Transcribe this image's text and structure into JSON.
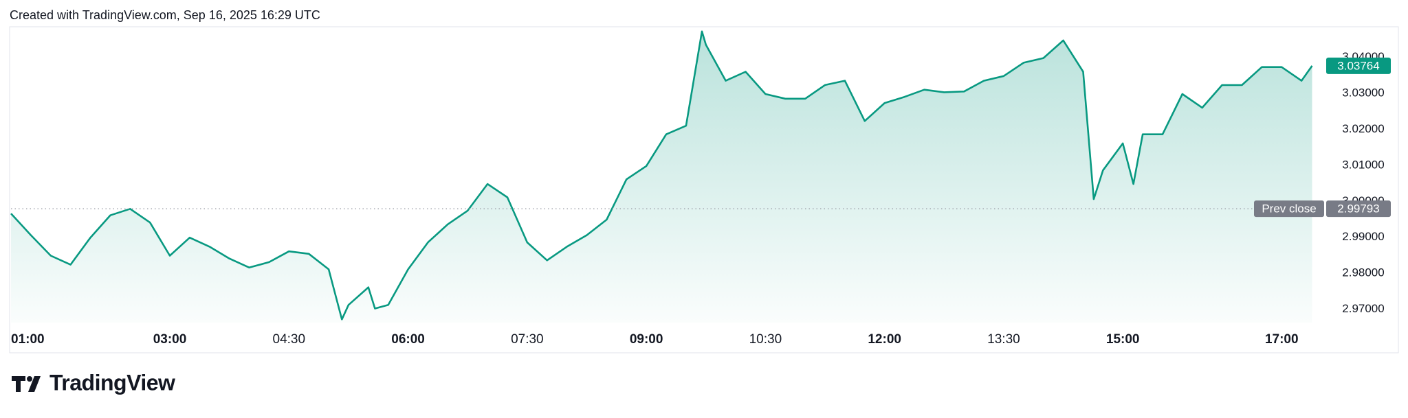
{
  "header": {
    "text": "Created with TradingView.com, Sep 16, 2025 16:29 UTC"
  },
  "footer": {
    "brand": "TradingView"
  },
  "chart_data": {
    "type": "area",
    "color": "#089981",
    "x": [
      "01:00",
      "01:15",
      "01:30",
      "01:45",
      "02:00",
      "02:15",
      "02:30",
      "02:45",
      "03:00",
      "03:15",
      "03:30",
      "03:45",
      "04:00",
      "04:15",
      "04:30",
      "04:45",
      "05:00",
      "05:10",
      "05:15",
      "05:30",
      "05:35",
      "05:45",
      "06:00",
      "06:15",
      "06:30",
      "06:45",
      "07:00",
      "07:15",
      "07:30",
      "07:45",
      "08:00",
      "08:15",
      "08:30",
      "08:45",
      "09:00",
      "09:15",
      "09:30",
      "09:42",
      "09:45",
      "10:00",
      "10:15",
      "10:30",
      "10:45",
      "11:00",
      "11:15",
      "11:30",
      "11:45",
      "12:00",
      "12:15",
      "12:30",
      "12:45",
      "13:00",
      "13:15",
      "13:30",
      "13:45",
      "14:00",
      "14:15",
      "14:30",
      "14:38",
      "14:45",
      "15:00",
      "15:08",
      "15:15",
      "15:30",
      "15:45",
      "16:00",
      "16:15",
      "16:30",
      "16:45",
      "17:00",
      "17:15",
      "17:23"
    ],
    "values": [
      2.9966,
      2.9906,
      2.9849,
      2.9824,
      2.9899,
      2.9961,
      2.9979,
      2.9941,
      2.9849,
      2.9899,
      2.9874,
      2.9841,
      2.9816,
      2.9831,
      2.9861,
      2.9854,
      2.9811,
      2.9672,
      2.9712,
      2.9761,
      2.9702,
      2.9712,
      2.9811,
      2.9886,
      2.9936,
      2.9974,
      3.0048,
      3.0011,
      2.9886,
      2.9836,
      2.9874,
      2.9906,
      2.9949,
      3.0061,
      3.0098,
      3.0186,
      3.021,
      3.0472,
      3.0435,
      3.0335,
      3.036,
      3.0298,
      3.0285,
      3.0285,
      3.0323,
      3.0335,
      3.0223,
      3.0273,
      3.029,
      3.031,
      3.0303,
      3.0305,
      3.0335,
      3.0348,
      3.0385,
      3.0398,
      3.0447,
      3.036,
      3.0006,
      3.0086,
      3.0161,
      3.0048,
      3.0186,
      3.0186,
      3.0298,
      3.026,
      3.0323,
      3.0323,
      3.0373,
      3.0373,
      3.0335,
      3.03764
    ],
    "xlim": [
      "01:00",
      "17:30"
    ],
    "xticks": [
      "01:00",
      "03:00",
      "04:30",
      "06:00",
      "07:30",
      "09:00",
      "10:30",
      "12:00",
      "13:30",
      "15:00",
      "17:00"
    ],
    "xticks_bold": [
      true,
      true,
      false,
      true,
      false,
      true,
      false,
      true,
      false,
      true,
      true
    ],
    "ylim": [
      2.9663,
      3.0483
    ],
    "yticks": [
      {
        "value": 2.97,
        "label": "2.97000"
      },
      {
        "value": 2.98,
        "label": "2.98000"
      },
      {
        "value": 2.99,
        "label": "2.99000"
      },
      {
        "value": 3.0,
        "label": "3.00000"
      },
      {
        "value": 3.01,
        "label": "3.01000"
      },
      {
        "value": 3.02,
        "label": "3.02000"
      },
      {
        "value": 3.03,
        "label": "3.03000"
      },
      {
        "value": 3.04,
        "label": "3.04000"
      }
    ],
    "grid": false,
    "prev_close": {
      "label": "Prev close",
      "value": 2.99793
    }
  }
}
